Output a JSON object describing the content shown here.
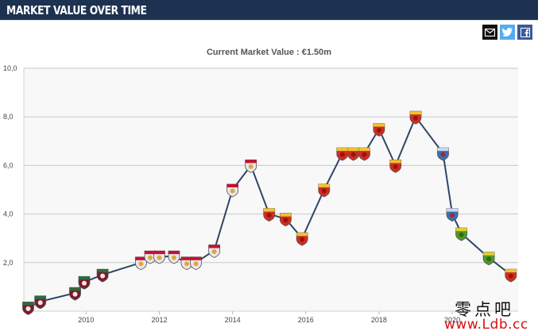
{
  "header": {
    "title": "MARKET VALUE OVER TIME"
  },
  "share": {
    "mail_icon": "mail-icon",
    "twitter_icon": "twitter-icon",
    "facebook_icon": "facebook-icon"
  },
  "watermark": {
    "text_cn": "零点吧",
    "url": "www.Ldb.cc"
  },
  "colors": {
    "header_bg": "#1d3150",
    "line": "#2e4566",
    "plot_bg": "#f8f8f8",
    "grid": "#c8c8c8"
  },
  "chart_data": {
    "type": "line",
    "title": "Current Market Value : €1.50m",
    "xlabel": "",
    "ylabel": "",
    "xlim": [
      2008.3,
      2021.8
    ],
    "ylim": [
      0,
      10
    ],
    "y_ticks": [
      "",
      "2,0",
      "4,0",
      "6,0",
      "8,0",
      "10,0"
    ],
    "x_ticks": [
      2010,
      2012,
      2014,
      2016,
      2018,
      2020
    ],
    "grid": true,
    "legend": "none",
    "points": [
      {
        "x": 2008.42,
        "y": 0.15,
        "club": "fluminense"
      },
      {
        "x": 2008.75,
        "y": 0.4,
        "club": "fluminense"
      },
      {
        "x": 2009.7,
        "y": 0.75,
        "club": "fluminense"
      },
      {
        "x": 2009.95,
        "y": 1.2,
        "club": "fluminense"
      },
      {
        "x": 2010.45,
        "y": 1.5,
        "club": "fluminense"
      },
      {
        "x": 2011.5,
        "y": 2.0,
        "club": "red-bull"
      },
      {
        "x": 2011.75,
        "y": 2.25,
        "club": "red-bull"
      },
      {
        "x": 2012.0,
        "y": 2.25,
        "club": "red-bull"
      },
      {
        "x": 2012.4,
        "y": 2.25,
        "club": "red-bull"
      },
      {
        "x": 2012.75,
        "y": 2.0,
        "club": "red-bull"
      },
      {
        "x": 2013.0,
        "y": 2.0,
        "club": "red-bull"
      },
      {
        "x": 2013.5,
        "y": 2.5,
        "club": "red-bull"
      },
      {
        "x": 2014.0,
        "y": 5.0,
        "club": "red-bull"
      },
      {
        "x": 2014.5,
        "y": 6.0,
        "club": "red-bull"
      },
      {
        "x": 2015.0,
        "y": 4.0,
        "club": "guangzhou"
      },
      {
        "x": 2015.45,
        "y": 3.8,
        "club": "guangzhou"
      },
      {
        "x": 2015.9,
        "y": 3.0,
        "club": "guangzhou"
      },
      {
        "x": 2016.5,
        "y": 5.0,
        "club": "guangzhou"
      },
      {
        "x": 2017.0,
        "y": 6.5,
        "club": "guangzhou"
      },
      {
        "x": 2017.3,
        "y": 6.5,
        "club": "guangzhou"
      },
      {
        "x": 2017.6,
        "y": 6.5,
        "club": "guangzhou"
      },
      {
        "x": 2018.0,
        "y": 7.5,
        "club": "guangzhou"
      },
      {
        "x": 2018.45,
        "y": 6.0,
        "club": "guangzhou"
      },
      {
        "x": 2019.0,
        "y": 8.0,
        "club": "guangzhou"
      },
      {
        "x": 2019.75,
        "y": 6.5,
        "club": "shenzhen"
      },
      {
        "x": 2020.0,
        "y": 4.0,
        "club": "shenzhen"
      },
      {
        "x": 2020.25,
        "y": 3.2,
        "club": "beijing"
      },
      {
        "x": 2021.0,
        "y": 2.2,
        "club": "beijing"
      },
      {
        "x": 2021.6,
        "y": 1.5,
        "club": "guangzhou"
      }
    ]
  }
}
